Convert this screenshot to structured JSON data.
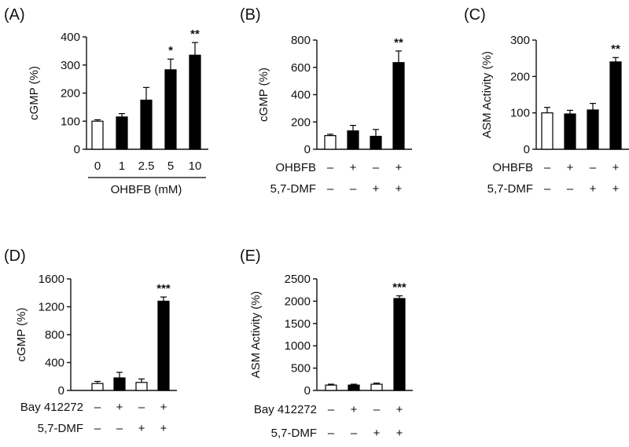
{
  "colors": {
    "open_bar": "#ffffff",
    "filled_bar": "#000000",
    "stroke": "#000000"
  },
  "chart_data": [
    {
      "panel": "(A)",
      "type": "bar",
      "ylabel": "cGMP (%)",
      "xlabel": "OHBFB (mM)",
      "ylim": [
        0,
        400
      ],
      "yticks": [
        "0",
        "100",
        "200",
        "300",
        "400"
      ],
      "categories": [
        "0",
        "1",
        "2.5",
        "5",
        "10"
      ],
      "values": [
        100,
        115,
        175,
        283,
        335
      ],
      "errors": [
        5,
        12,
        45,
        38,
        45
      ],
      "fills": [
        "open",
        "filled",
        "filled",
        "filled",
        "filled"
      ],
      "sig": [
        "",
        "",
        "",
        "*",
        "**"
      ]
    },
    {
      "panel": "(B)",
      "type": "bar",
      "ylabel": "cGMP (%)",
      "ylim": [
        0,
        800
      ],
      "yticks": [
        "0",
        "200",
        "400",
        "600",
        "800"
      ],
      "values": [
        100,
        135,
        95,
        635
      ],
      "errors": [
        10,
        40,
        50,
        85
      ],
      "fills": [
        "open",
        "filled",
        "filled",
        "filled"
      ],
      "sig": [
        "",
        "",
        "",
        "**"
      ],
      "conditions": [
        {
          "label": "OHBFB",
          "marks": [
            "–",
            "+",
            "–",
            "+"
          ]
        },
        {
          "label": "5,7-DMF",
          "marks": [
            "–",
            "–",
            "+",
            "+"
          ]
        }
      ]
    },
    {
      "panel": "(C)",
      "type": "bar",
      "ylabel": "ASM Activity (%)",
      "ylim": [
        0,
        300
      ],
      "yticks": [
        "0",
        "100",
        "200",
        "300"
      ],
      "values": [
        100,
        97,
        108,
        240
      ],
      "errors": [
        15,
        10,
        18,
        12
      ],
      "fills": [
        "open",
        "filled",
        "filled",
        "filled"
      ],
      "sig": [
        "",
        "",
        "",
        "**"
      ],
      "conditions": [
        {
          "label": "OHBFB",
          "marks": [
            "–",
            "+",
            "–",
            "+"
          ]
        },
        {
          "label": "5,7-DMF",
          "marks": [
            "–",
            "–",
            "+",
            "+"
          ]
        }
      ]
    },
    {
      "panel": "(D)",
      "type": "bar",
      "ylabel": "cGMP (%)",
      "ylim": [
        0,
        1600
      ],
      "yticks": [
        "0",
        "400",
        "800",
        "1200",
        "1600"
      ],
      "values": [
        100,
        180,
        115,
        1280
      ],
      "errors": [
        30,
        80,
        50,
        60
      ],
      "fills": [
        "open",
        "filled",
        "open",
        "filled"
      ],
      "sig": [
        "",
        "",
        "",
        "***"
      ],
      "conditions": [
        {
          "label": "Bay 412272",
          "marks": [
            "–",
            "+",
            "–",
            "+"
          ]
        },
        {
          "label": "5,7-DMF",
          "marks": [
            "–",
            "–",
            "+",
            "+"
          ]
        }
      ]
    },
    {
      "panel": "(E)",
      "type": "bar",
      "ylabel": "ASM Activity (%)",
      "ylim": [
        0,
        2500
      ],
      "yticks": [
        "0",
        "500",
        "1000",
        "1500",
        "2000",
        "2500"
      ],
      "values": [
        120,
        120,
        140,
        2060
      ],
      "errors": [
        20,
        20,
        25,
        60
      ],
      "fills": [
        "open",
        "filled",
        "open",
        "filled"
      ],
      "sig": [
        "",
        "",
        "",
        "***"
      ],
      "conditions": [
        {
          "label": "Bay 412272",
          "marks": [
            "–",
            "+",
            "–",
            "+"
          ]
        },
        {
          "label": "5,7-DMF",
          "marks": [
            "–",
            "–",
            "+",
            "+"
          ]
        }
      ]
    }
  ]
}
